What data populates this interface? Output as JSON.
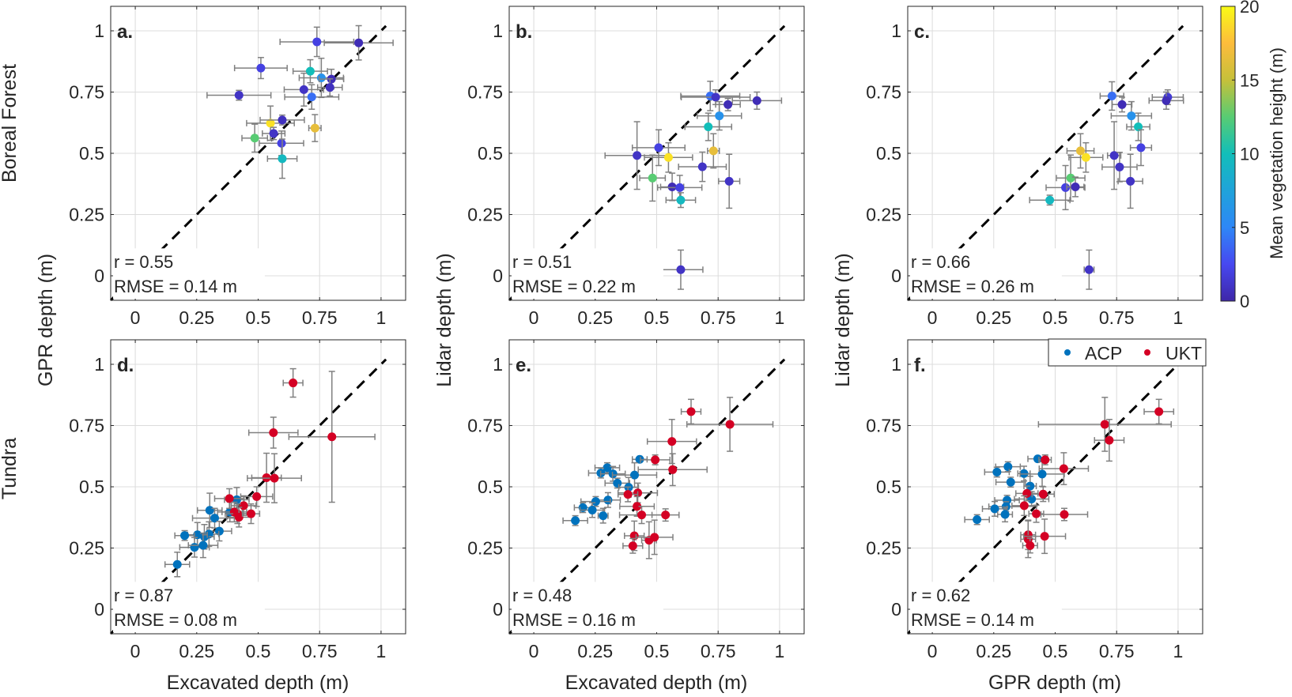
{
  "figure": {
    "row_labels": [
      "Boreal Forest",
      "Tundra"
    ],
    "colorbar": {
      "label": "Mean vegetation height (m)",
      "ticks": [
        "0",
        "5",
        "10",
        "15",
        "20"
      ],
      "range": [
        0,
        20
      ],
      "colormap": [
        "#3e26a8",
        "#4748f0",
        "#2e87f7",
        "#1fa3da",
        "#12beb9",
        "#58cc73",
        "#c6c03a",
        "#fdbc3c",
        "#f9fb15"
      ]
    },
    "legend": {
      "placement": "top-right of panel f",
      "entries": [
        {
          "label": "ACP",
          "color": "#0072bd"
        },
        {
          "label": "UKT",
          "color": "#d40024"
        }
      ]
    },
    "error_bar_color": "#808080",
    "reference_line": "1:1 dashed"
  },
  "chart_data": [
    {
      "type": "scatter",
      "panel": "a.",
      "xlabel": "",
      "ylabel": "GPR depth (m)",
      "xlim": [
        -0.1,
        1.1
      ],
      "ylim": [
        -0.1,
        1.1
      ],
      "xticks": [
        "0",
        "0.25",
        "0.5",
        "0.75",
        "1"
      ],
      "yticks": [
        "0",
        "0.25",
        "0.5",
        "0.75",
        "1"
      ],
      "stats": [
        "r = 0.55",
        "RMSE = 0.14 m"
      ],
      "color_by": "height",
      "points": [
        [
          0.739,
          0.955,
          0.15,
          0.06,
          2
        ],
        [
          0.909,
          0.951,
          0.14,
          0.07,
          0.5
        ],
        [
          0.511,
          0.848,
          0.107,
          0.043,
          2
        ],
        [
          0.712,
          0.835,
          0.07,
          0.047,
          10
        ],
        [
          0.757,
          0.808,
          0.09,
          0.08,
          6
        ],
        [
          0.798,
          0.803,
          0.05,
          0.04,
          0.5
        ],
        [
          0.792,
          0.769,
          0.05,
          0.035,
          0.8
        ],
        [
          0.686,
          0.76,
          0.08,
          0.067,
          1
        ],
        [
          0.718,
          0.73,
          0.11,
          0.05,
          4
        ],
        [
          0.422,
          0.737,
          0.13,
          0.02,
          1
        ],
        [
          0.55,
          0.623,
          0.097,
          0.07,
          19
        ],
        [
          0.598,
          0.636,
          0.09,
          0.02,
          0.8
        ],
        [
          0.731,
          0.603,
          0.025,
          0.055,
          16.5
        ],
        [
          0.563,
          0.581,
          0.046,
          0.025,
          1
        ],
        [
          0.486,
          0.562,
          0.052,
          0.057,
          12.5
        ],
        [
          0.595,
          0.541,
          0.09,
          0.05,
          2
        ],
        [
          0.598,
          0.478,
          0.06,
          0.08,
          9.5
        ]
      ]
    },
    {
      "type": "scatter",
      "panel": "b.",
      "xlabel": "",
      "ylabel": "Lidar depth (m)",
      "xlim": [
        -0.1,
        1.1
      ],
      "ylim": [
        -0.1,
        1.1
      ],
      "xticks": [
        "0",
        "0.25",
        "0.5",
        "0.75",
        "1"
      ],
      "yticks": [
        "0",
        "0.25",
        "0.5",
        "0.75",
        "1"
      ],
      "stats": [
        "r = 0.51",
        "RMSE = 0.22 m"
      ],
      "color_by": "height",
      "points": [
        [
          0.718,
          0.734,
          0.12,
          0.06,
          4
        ],
        [
          0.74,
          0.729,
          0.14,
          0.03,
          1
        ],
        [
          0.908,
          0.715,
          0.1,
          0.035,
          0.5
        ],
        [
          0.79,
          0.699,
          0.05,
          0.025,
          0.5
        ],
        [
          0.755,
          0.653,
          0.09,
          0.058,
          6
        ],
        [
          0.71,
          0.608,
          0.095,
          0.056,
          10
        ],
        [
          0.731,
          0.51,
          0.024,
          0.07,
          16.5
        ],
        [
          0.508,
          0.523,
          0.107,
          0.073,
          2
        ],
        [
          0.42,
          0.491,
          0.13,
          0.138,
          1
        ],
        [
          0.548,
          0.483,
          0.098,
          0.06,
          19
        ],
        [
          0.686,
          0.445,
          0.097,
          0.06,
          1
        ],
        [
          0.483,
          0.399,
          0.052,
          0.094,
          12.5
        ],
        [
          0.795,
          0.386,
          0.043,
          0.11,
          1
        ],
        [
          0.563,
          0.363,
          0.047,
          0.056,
          0.5
        ],
        [
          0.594,
          0.36,
          0.09,
          0.05,
          2
        ],
        [
          0.598,
          0.309,
          0.06,
          0.03,
          9.5
        ],
        [
          0.598,
          0.025,
          0.09,
          0.08,
          1
        ]
      ]
    },
    {
      "type": "scatter",
      "panel": "c.",
      "xlabel": "",
      "ylabel": "Lidar depth (m)",
      "xlim": [
        -0.1,
        1.1
      ],
      "ylim": [
        -0.1,
        1.1
      ],
      "xticks": [
        "0",
        "0.25",
        "0.5",
        "0.75",
        "1"
      ],
      "yticks": [
        "0",
        "0.25",
        "0.5",
        "0.75",
        "1"
      ],
      "stats": [
        "r = 0.66",
        "RMSE = 0.26 m"
      ],
      "color_by": "height",
      "points": [
        [
          0.731,
          0.734,
          0.048,
          0.058,
          4
        ],
        [
          0.772,
          0.699,
          0.04,
          0.03,
          0.5
        ],
        [
          0.958,
          0.729,
          0.063,
          0.03,
          1.5
        ],
        [
          0.952,
          0.715,
          0.07,
          0.035,
          0.5
        ],
        [
          0.81,
          0.653,
          0.082,
          0.058,
          6
        ],
        [
          0.838,
          0.608,
          0.047,
          0.056,
          10
        ],
        [
          0.849,
          0.523,
          0.043,
          0.073,
          2
        ],
        [
          0.603,
          0.51,
          0.055,
          0.07,
          16.5
        ],
        [
          0.625,
          0.483,
          0.069,
          0.06,
          19
        ],
        [
          0.74,
          0.491,
          0.027,
          0.138,
          1
        ],
        [
          0.762,
          0.444,
          0.071,
          0.06,
          1
        ],
        [
          0.806,
          0.386,
          0.05,
          0.11,
          1
        ],
        [
          0.563,
          0.399,
          0.058,
          0.094,
          12.5
        ],
        [
          0.542,
          0.36,
          0.079,
          0.09,
          2
        ],
        [
          0.582,
          0.363,
          0.035,
          0.04,
          0.5
        ],
        [
          0.478,
          0.309,
          0.082,
          0.02,
          9.5
        ],
        [
          0.638,
          0.025,
          0.02,
          0.08,
          1
        ]
      ]
    },
    {
      "type": "scatter",
      "panel": "d.",
      "xlabel": "Excavated depth (m)",
      "ylabel": "",
      "xlim": [
        -0.1,
        1.1
      ],
      "ylim": [
        -0.1,
        1.1
      ],
      "xticks": [
        "0",
        "0.25",
        "0.5",
        "0.75",
        "1"
      ],
      "yticks": [
        "0",
        "0.25",
        "0.5",
        "0.75",
        "1"
      ],
      "stats": [
        "r = 0.87",
        "RMSE = 0.08 m"
      ],
      "color_by": "group",
      "series": [
        {
          "name": "ACP",
          "points": [
            [
              0.413,
              0.447,
              0.05,
              0.05
            ],
            [
              0.385,
              0.397,
              0.05,
              0.04
            ],
            [
              0.303,
              0.404,
              0.05,
              0.07
            ],
            [
              0.323,
              0.372,
              0.09,
              0.04
            ],
            [
              0.342,
              0.319,
              0.05,
              0.04
            ],
            [
              0.3,
              0.307,
              0.04,
              0.05
            ],
            [
              0.281,
              0.296,
              0.04,
              0.05
            ],
            [
              0.253,
              0.304,
              0.04,
              0.05
            ],
            [
              0.201,
              0.301,
              0.04,
              0.02
            ],
            [
              0.241,
              0.253,
              0.06,
              0.04
            ],
            [
              0.276,
              0.261,
              0.06,
              0.05
            ],
            [
              0.171,
              0.183,
              0.05,
              0.05
            ]
          ]
        },
        {
          "name": "UKT",
          "points": [
            [
              0.642,
              0.924,
              0.04,
              0.058
            ],
            [
              0.562,
              0.721,
              0.1,
              0.063
            ],
            [
              0.8,
              0.704,
              0.175,
              0.267
            ],
            [
              0.534,
              0.537,
              0.06,
              0.1
            ],
            [
              0.566,
              0.535,
              0.11,
              0.1
            ],
            [
              0.494,
              0.46,
              0.065,
              0.04
            ],
            [
              0.383,
              0.452,
              0.06,
              0.04
            ],
            [
              0.441,
              0.423,
              0.05,
              0.04
            ],
            [
              0.403,
              0.397,
              0.05,
              0.04
            ],
            [
              0.416,
              0.39,
              0.05,
              0.04
            ],
            [
              0.422,
              0.376,
              0.05,
              0.04
            ],
            [
              0.471,
              0.39,
              0.035,
              0.04
            ]
          ]
        }
      ]
    },
    {
      "type": "scatter",
      "panel": "e.",
      "xlabel": "Excavated depth (m)",
      "ylabel": "",
      "xlim": [
        -0.1,
        1.1
      ],
      "ylim": [
        -0.1,
        1.1
      ],
      "xticks": [
        "0",
        "0.25",
        "0.5",
        "0.75",
        "1"
      ],
      "yticks": [
        "0",
        "0.25",
        "0.5",
        "0.75",
        "1"
      ],
      "stats": [
        "r = 0.48",
        "RMSE = 0.16 m"
      ],
      "color_by": "group",
      "series": [
        {
          "name": "ACP",
          "points": [
            [
              0.431,
              0.612,
              0.03,
              0.01
            ],
            [
              0.299,
              0.578,
              0.05,
              0.02
            ],
            [
              0.273,
              0.556,
              0.05,
              0.02
            ],
            [
              0.322,
              0.553,
              0.05,
              0.03
            ],
            [
              0.41,
              0.548,
              0.09,
              0.05
            ],
            [
              0.34,
              0.515,
              0.05,
              0.02
            ],
            [
              0.386,
              0.498,
              0.04,
              0.04
            ],
            [
              0.302,
              0.446,
              0.05,
              0.03
            ],
            [
              0.252,
              0.44,
              0.06,
              0.02
            ],
            [
              0.2,
              0.415,
              0.035,
              0.02
            ],
            [
              0.238,
              0.405,
              0.05,
              0.03
            ],
            [
              0.282,
              0.382,
              0.02,
              0.03
            ],
            [
              0.169,
              0.362,
              0.05,
              0.02
            ]
          ]
        },
        {
          "name": "UKT",
          "points": [
            [
              0.64,
              0.807,
              0.04,
              0.05
            ],
            [
              0.798,
              0.755,
              0.175,
              0.11
            ],
            [
              0.562,
              0.685,
              0.1,
              0.09
            ],
            [
              0.494,
              0.61,
              0.06,
              0.02
            ],
            [
              0.565,
              0.57,
              0.14,
              0.065
            ],
            [
              0.423,
              0.475,
              0.08,
              0.04
            ],
            [
              0.383,
              0.469,
              0.04,
              0.03
            ],
            [
              0.42,
              0.42,
              0.07,
              0.04
            ],
            [
              0.439,
              0.385,
              0.09,
              0.035
            ],
            [
              0.536,
              0.385,
              0.055,
              0.025
            ],
            [
              0.409,
              0.3,
              0.04,
              0.06
            ],
            [
              0.469,
              0.282,
              0.03,
              0.075
            ],
            [
              0.491,
              0.294,
              0.075,
              0.07
            ],
            [
              0.403,
              0.259,
              0.04,
              0.03
            ]
          ]
        }
      ]
    },
    {
      "type": "scatter",
      "panel": "f.",
      "xlabel": "GPR depth (m)",
      "ylabel": "",
      "xlim": [
        -0.1,
        1.1
      ],
      "ylim": [
        -0.1,
        1.1
      ],
      "xticks": [
        "0",
        "0.25",
        "0.5",
        "0.75",
        "1"
      ],
      "yticks": [
        "0",
        "0.25",
        "0.5",
        "0.75",
        "1"
      ],
      "stats": [
        "r = 0.62",
        "RMSE = 0.14 m"
      ],
      "color_by": "group",
      "series": [
        {
          "name": "ACP",
          "points": [
            [
              0.429,
              0.614,
              0.04,
              0.01
            ],
            [
              0.308,
              0.582,
              0.05,
              0.02
            ],
            [
              0.263,
              0.56,
              0.05,
              0.02
            ],
            [
              0.373,
              0.554,
              0.025,
              0.03
            ],
            [
              0.447,
              0.552,
              0.09,
              0.05
            ],
            [
              0.319,
              0.519,
              0.06,
              0.02
            ],
            [
              0.398,
              0.503,
              0.025,
              0.04
            ],
            [
              0.404,
              0.45,
              0.07,
              0.03
            ],
            [
              0.304,
              0.445,
              0.05,
              0.02
            ],
            [
              0.3,
              0.419,
              0.07,
              0.02
            ],
            [
              0.254,
              0.41,
              0.05,
              0.03
            ],
            [
              0.296,
              0.387,
              0.03,
              0.03
            ],
            [
              0.182,
              0.366,
              0.05,
              0.02
            ]
          ]
        },
        {
          "name": "UKT",
          "points": [
            [
              0.922,
              0.807,
              0.06,
              0.05
            ],
            [
              0.702,
              0.755,
              0.27,
              0.11
            ],
            [
              0.72,
              0.69,
              0.06,
              0.085
            ],
            [
              0.459,
              0.61,
              0.025,
              0.02
            ],
            [
              0.535,
              0.574,
              0.1,
              0.065
            ],
            [
              0.385,
              0.473,
              0.045,
              0.03
            ],
            [
              0.451,
              0.47,
              0.045,
              0.03
            ],
            [
              0.374,
              0.423,
              0.05,
              0.04
            ],
            [
              0.423,
              0.39,
              0.03,
              0.035
            ],
            [
              0.537,
              0.387,
              0.095,
              0.025
            ],
            [
              0.39,
              0.304,
              0.03,
              0.06
            ],
            [
              0.39,
              0.286,
              0.03,
              0.075
            ],
            [
              0.457,
              0.298,
              0.085,
              0.07
            ],
            [
              0.398,
              0.26,
              0.03,
              0.03
            ]
          ]
        }
      ]
    }
  ]
}
